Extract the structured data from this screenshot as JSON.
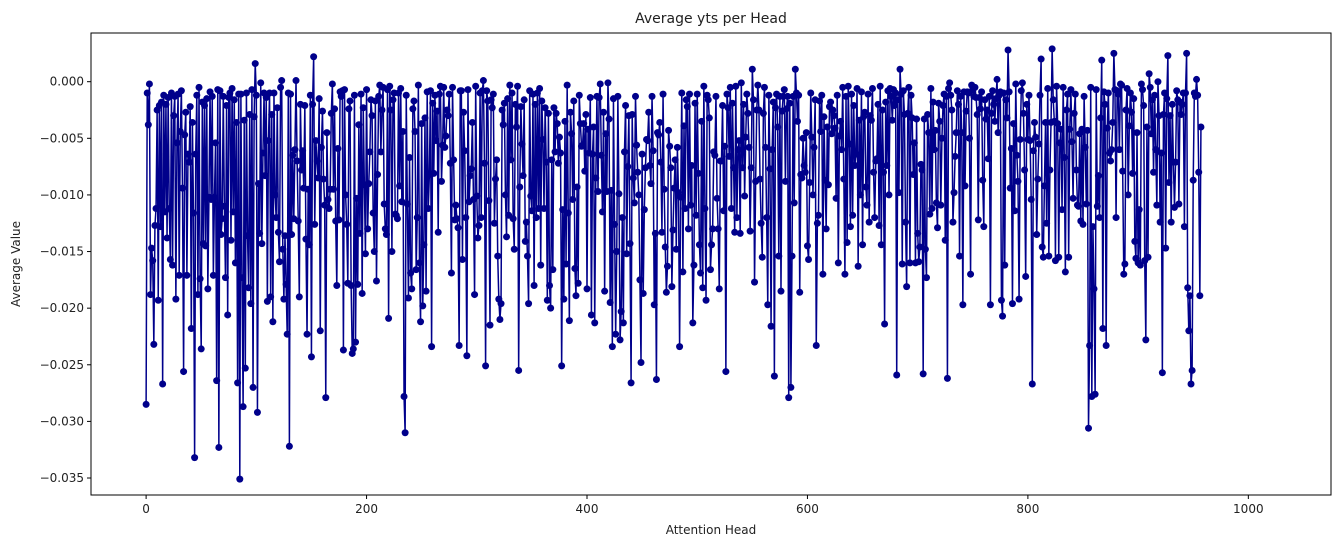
{
  "chart_data": {
    "type": "line",
    "title": "Average yts per Head",
    "xlabel": "Attention Head",
    "ylabel": "Average Value",
    "xlim": [
      -50,
      1075
    ],
    "ylim": [
      -0.0365,
      0.0043
    ],
    "xticks": [
      0,
      200,
      400,
      600,
      800,
      1000
    ],
    "xtick_labels": [
      "0",
      "200",
      "400",
      "600",
      "800",
      "1000"
    ],
    "yticks": [
      0.0,
      -0.005,
      -0.01,
      -0.015,
      -0.02,
      -0.025,
      -0.03,
      -0.035
    ],
    "ytick_labels": [
      "0.000",
      "−0.005",
      "−0.010",
      "−0.015",
      "−0.020",
      "−0.025",
      "−0.030",
      "−0.035"
    ],
    "grid": false,
    "legend": "none",
    "marker": "circle",
    "color": "#00008b",
    "series": [
      {
        "x_start": 0,
        "x_step": 1,
        "values": [
          -0.0285,
          -0.001,
          -0.0038,
          -0.0002,
          -0.0188,
          -0.0147,
          -0.0158,
          -0.0232,
          -0.0127,
          -0.0112,
          -0.0025,
          -0.0193,
          -0.0021,
          -0.0128,
          -0.0018,
          -0.0267,
          -0.0012,
          -0.0115,
          -0.002,
          -0.0138,
          -0.0014,
          -0.0112,
          -0.0157,
          -0.001,
          -0.0162,
          -0.003,
          -0.0013,
          -0.0192,
          -0.0054,
          -0.0011,
          -0.0171,
          -0.0044,
          -0.0008,
          -0.0094,
          -0.0256,
          -0.0047,
          -0.0027,
          -0.0171,
          -0.0064,
          -0.0071,
          -0.0022,
          -0.0218,
          -0.0036,
          -0.0116,
          -0.0332,
          -0.0064,
          -0.0012,
          -0.0188,
          -0.0005,
          -0.0174,
          -0.0236,
          -0.0018,
          -0.0143,
          -0.0021,
          -0.0145,
          -0.0015,
          -0.0183,
          -0.0102,
          -0.0009,
          -0.0104,
          -0.0013,
          -0.0171,
          -0.0102,
          -0.0054,
          -0.0264,
          -0.0007,
          -0.0323,
          -0.0008,
          -0.0135,
          -0.0121,
          -0.0013,
          -0.011,
          -0.0173,
          -0.0021,
          -0.0206,
          -0.0014,
          -0.001,
          -0.014,
          -0.0006,
          -0.0115,
          -0.0016,
          -0.016,
          -0.0036,
          -0.0266,
          -0.0011,
          -0.0351,
          -0.0011,
          -0.0173,
          -0.0287,
          -0.0034,
          -0.0253,
          -0.001,
          -0.0136,
          -0.0182,
          -0.0029,
          -0.0196,
          -0.0007,
          -0.027,
          -0.0031,
          0.0016,
          -0.0012,
          -0.0292,
          -0.009,
          -0.0134,
          -0.0001,
          -0.0143,
          -0.0063,
          -0.001,
          -0.0083,
          -0.0014,
          -0.0194,
          -0.0052,
          -0.001,
          -0.019,
          -0.0029,
          -0.0212,
          -0.001,
          -0.01,
          -0.012,
          -0.0023,
          -0.0133,
          -0.0159,
          -0.0005,
          0.0001,
          -0.0148,
          -0.0192,
          -0.0136,
          -0.0179,
          -0.0223,
          -0.001,
          -0.0322,
          -0.0011,
          -0.0135,
          -0.0065,
          -0.0121,
          -0.006,
          0.0001,
          -0.007,
          -0.0123,
          -0.019,
          -0.002,
          -0.0078,
          -0.0061,
          -0.0094,
          -0.0021,
          -0.0139,
          -0.0223,
          -0.0095,
          -0.0144,
          -0.0012,
          -0.0243,
          -0.002,
          0.0022,
          -0.0126,
          -0.0052,
          -0.007,
          -0.0085,
          -0.0015,
          -0.022,
          -0.0058,
          -0.0026,
          -0.0086,
          -0.0109,
          -0.0279,
          -0.0045,
          -0.0104,
          -0.0112,
          -0.0095,
          -0.0028,
          -0.0002,
          -0.0095,
          -0.0024,
          -0.0123,
          -0.018,
          -0.0059,
          -0.0122,
          -0.0009,
          -0.0013,
          -0.0008,
          -0.0237,
          -0.0007,
          -0.01,
          -0.0126,
          -0.0178,
          -0.0024,
          -0.0017,
          -0.018,
          -0.024,
          -0.0236,
          -0.0012,
          -0.023,
          -0.0103,
          -0.0179,
          -0.0038,
          -0.0134,
          -0.0011,
          -0.0187,
          -0.0023,
          -0.0091,
          -0.0152,
          -0.0007,
          -0.013,
          -0.009,
          -0.0062,
          -0.0016,
          -0.003,
          -0.0116,
          -0.015,
          -0.0017,
          -0.0176,
          -0.0082,
          -0.0013,
          -0.0003,
          -0.0062,
          -0.0025,
          -0.0005,
          -0.0108,
          -0.013,
          -0.0135,
          -0.0007,
          -0.0209,
          -0.0004,
          -0.0025,
          -0.015,
          -0.0016,
          -0.001,
          -0.0117,
          -0.0118,
          -0.0121,
          -0.001,
          -0.0092,
          -0.0006,
          -0.0106,
          -0.0044,
          -0.0278,
          -0.031,
          -0.0012,
          -0.0108,
          -0.0191,
          -0.0067,
          -0.0169,
          -0.0183,
          -0.0024,
          -0.0017,
          -0.0044,
          -0.0166,
          -0.012,
          -0.0003,
          -0.016,
          -0.0212,
          -0.0037,
          -0.0198,
          -0.0144,
          -0.0032,
          -0.0185,
          -0.0009,
          -0.0112,
          -0.0082,
          -0.0008,
          -0.0234,
          -0.0019,
          -0.0081,
          -0.0012,
          -0.0052,
          -0.0026,
          -0.0133,
          -0.0011,
          -0.0004,
          -0.0088,
          -0.0056,
          -0.0005,
          -0.0058,
          -0.0048,
          -0.0025,
          -0.003,
          -0.0011,
          -0.0072,
          -0.0169,
          -0.0005,
          -0.0069,
          -0.0122,
          -0.0109,
          -0.0121,
          -0.0129,
          -0.0233,
          -0.0008,
          -0.0008,
          -0.0157,
          -0.0027,
          -0.0061,
          -0.012,
          -0.0242,
          -0.0007,
          -0.0106,
          -0.0083,
          -0.0077,
          -0.0036,
          -0.0104,
          -0.0188,
          -0.0004,
          -0.0101,
          -0.0138,
          -0.0127,
          -0.001,
          -0.012,
          -0.0008,
          0.0001,
          -0.0072,
          -0.0251,
          -0.0008,
          -0.0017,
          -0.0105,
          -0.0215,
          -0.0016,
          -0.0023,
          -0.0011,
          -0.0125,
          -0.0086,
          -0.0069,
          -0.0154,
          -0.0192,
          -0.021,
          -0.0196,
          -0.0025,
          -0.0038,
          -0.0019,
          -0.01,
          -0.0137,
          -0.0015,
          -0.0118,
          -0.0003,
          -0.0069,
          -0.001,
          -0.0121,
          -0.0148,
          -0.002,
          -0.004,
          -0.0004,
          -0.0255,
          -0.0093,
          -0.0022,
          -0.0055,
          -0.0083,
          -0.0016,
          -0.0141,
          -0.0124,
          -0.0154,
          -0.0196,
          -0.0008,
          -0.0101,
          -0.0114,
          -0.0011,
          -0.018,
          -0.002,
          -0.012,
          -0.001,
          -0.0112,
          -0.0006,
          -0.0162,
          -0.0017,
          -0.0051,
          -0.0112,
          -0.0023,
          -0.0071,
          -0.0193,
          -0.0028,
          -0.018,
          -0.02,
          -0.0069,
          -0.0166,
          -0.0023,
          -0.0062,
          -0.0028,
          -0.0037,
          -0.0072,
          -0.0049,
          -0.0063,
          -0.0251,
          -0.0113,
          -0.0192,
          -0.0035,
          -0.0161,
          -0.0003,
          -0.0116,
          -0.0211,
          -0.0027,
          -0.0046,
          -0.0104,
          -0.0017,
          -0.0165,
          -0.0189,
          -0.0093,
          -0.0178,
          -0.0012,
          -0.0037,
          -0.0057,
          -0.0056,
          -0.0037,
          -0.0079,
          -0.0029,
          -0.0183,
          -0.0042,
          -0.0063,
          -0.0014,
          -0.0206,
          -0.0064,
          -0.004,
          -0.0213,
          -0.0085,
          -0.0013,
          -0.0097,
          -0.0014,
          -0.0002,
          -0.0065,
          -0.0115,
          -0.0027,
          -0.0185,
          -0.0046,
          -0.0097,
          -0.0001,
          -0.0033,
          -0.0195,
          -0.0096,
          -0.0234,
          -0.0015,
          -0.0126,
          -0.0223,
          -0.015,
          -0.0013,
          -0.0099,
          -0.0228,
          -0.0203,
          -0.012,
          -0.0213,
          -0.0062,
          -0.0021,
          -0.0152,
          -0.0075,
          -0.003,
          -0.0143,
          -0.0266,
          -0.0029,
          -0.0085,
          -0.0107,
          -0.0013,
          -0.0056,
          -0.008,
          -0.01,
          -0.0175,
          -0.0248,
          -0.0064,
          -0.0187,
          -0.0113,
          -0.0076,
          -0.0051,
          -0.0052,
          -0.0027,
          -0.0074,
          -0.009,
          -0.0013,
          -0.0061,
          -0.0197,
          -0.0134,
          -0.0263,
          -0.0045,
          -0.0047,
          -0.0036,
          -0.0071,
          -0.0133,
          -0.0011,
          -0.0095,
          -0.0146,
          -0.0186,
          -0.0163,
          -0.0043,
          -0.0057,
          -0.0076,
          -0.0181,
          -0.0131,
          -0.0094,
          -0.0069,
          -0.0148,
          -0.0058,
          -0.0098,
          -0.0234,
          -0.0102,
          -0.001,
          -0.0168,
          -0.0039,
          -0.0112,
          -0.0016,
          -0.0022,
          -0.013,
          -0.0011,
          -0.0109,
          -0.0074,
          -0.0213,
          -0.0162,
          -0.0019,
          -0.0118,
          -0.0011,
          -0.0081,
          -0.0144,
          -0.0169,
          -0.0035,
          -0.0182,
          -0.0004,
          -0.0112,
          -0.0193,
          -0.0012,
          -0.0016,
          -0.0032,
          -0.0166,
          -0.0144,
          -0.013,
          -0.0062,
          -0.0065,
          -0.0013,
          -0.0103,
          -0.013,
          -0.0183,
          -0.007,
          -0.007,
          -0.0021,
          -0.0114,
          -0.0057,
          -0.0256,
          -0.0011,
          -0.0023,
          -0.0066,
          -0.0005,
          -0.0112,
          -0.0019,
          -0.0076,
          -0.0133,
          -0.0004,
          -0.012,
          -0.006,
          -0.0052,
          -0.0134,
          -0.0001,
          -0.0076,
          -0.002,
          -0.0101,
          -0.0049,
          -0.0011,
          -0.0028,
          -0.0058,
          -0.0132,
          -0.0076,
          0.0011,
          -0.0016,
          -0.0177,
          -0.0088,
          -0.0025,
          -0.0003,
          -0.0025,
          -0.0086,
          -0.0125,
          -0.0155,
          -0.0028,
          -0.0005,
          -0.0058,
          -0.012,
          -0.0197,
          -0.0012,
          -0.0077,
          -0.0216,
          -0.006,
          -0.0018,
          -0.026,
          -0.0023,
          -0.0011,
          -0.004,
          -0.0154,
          -0.0013,
          -0.0185,
          -0.0026,
          -0.0013,
          -0.0007,
          -0.0088,
          -0.0024,
          -0.0013,
          -0.0279,
          -0.0019,
          -0.027,
          -0.0154,
          -0.0013,
          -0.0107,
          0.0011,
          -0.001,
          -0.0035,
          -0.0012,
          -0.0186,
          -0.0082,
          -0.0085,
          -0.005,
          -0.0074,
          -0.008,
          -0.0045,
          -0.0145,
          -0.0157,
          -0.0089,
          -0.001,
          -0.0049,
          -0.01,
          -0.0058,
          -0.0016,
          -0.0233,
          -0.0125,
          -0.0118,
          -0.0017,
          -0.0044,
          -0.0012,
          -0.017,
          -0.0031,
          -0.0087,
          -0.013,
          -0.004,
          -0.0091,
          -0.0022,
          -0.0018,
          -0.0046,
          -0.0025,
          -0.003,
          -0.0041,
          -0.0103,
          -0.0012,
          -0.016,
          -0.0048,
          -0.0035,
          -0.006,
          -0.0005,
          -0.0086,
          -0.017,
          -0.0013,
          -0.0142,
          -0.0004,
          -0.0055,
          -0.0128,
          -0.0011,
          -0.0118,
          -0.0021,
          -0.0074,
          -0.0064,
          -0.0006,
          -0.0163,
          -0.0034,
          -0.01,
          -0.0009,
          -0.0144,
          -0.0031,
          -0.0027,
          -0.0093,
          -0.0109,
          -0.0011,
          -0.0124,
          -0.003,
          -0.0034,
          -0.0006,
          -0.008,
          -0.012,
          -0.007,
          -0.0068,
          -0.002,
          -0.0127,
          -0.0004,
          -0.0144,
          -0.0025,
          -0.008,
          -0.0214,
          -0.0018,
          -0.0074,
          -0.0008,
          -0.01,
          -0.0006,
          -0.0013,
          -0.0034,
          -0.0007,
          -0.0021,
          -0.001,
          -0.0259,
          -0.0016,
          -0.0098,
          0.0011,
          -0.0011,
          -0.0161,
          -0.0008,
          -0.0029,
          -0.0124,
          -0.0181,
          -0.0028,
          -0.0005,
          -0.016,
          -0.0012,
          -0.0032,
          -0.0082,
          -0.0054,
          -0.016,
          -0.0033,
          -0.0134,
          -0.0159,
          -0.0146,
          -0.0073,
          -0.0078,
          -0.0258,
          -0.0033,
          -0.0148,
          -0.0173,
          -0.0029,
          -0.0045,
          -0.0117,
          -0.0006,
          -0.0112,
          -0.0018,
          -0.006,
          -0.0043,
          -0.0107,
          -0.0129,
          -0.0019,
          -0.0035,
          -0.0109,
          -0.005,
          -0.0021,
          -0.0011,
          -0.014,
          -0.0013,
          -0.0262,
          -0.0006,
          -0.0001,
          -0.0012,
          -0.0025,
          -0.0124,
          -0.0098,
          -0.0066,
          -0.0045,
          -0.0008,
          -0.002,
          -0.0154,
          -0.0013,
          -0.0045,
          -0.0197,
          -0.0009,
          -0.0092,
          -0.0026,
          -0.0009,
          -0.001,
          -0.005,
          -0.017,
          -0.0003,
          -0.0007,
          -0.0013,
          -0.0005,
          -0.0014,
          -0.0029,
          -0.0122,
          -0.0014,
          -0.0024,
          -0.0009,
          -0.0087,
          -0.0128,
          -0.0016,
          -0.0033,
          -0.0025,
          -0.0068,
          -0.0013,
          -0.0197,
          -0.0028,
          -0.0008,
          -0.002,
          -0.0035,
          -0.0015,
          0.0002,
          -0.0045,
          -0.0012,
          -0.0009,
          -0.0193,
          -0.0207,
          -0.001,
          -0.0162,
          -0.0016,
          -0.0032,
          0.0028,
          -0.0009,
          -0.0094,
          -0.0059,
          -0.0196,
          -0.0037,
          -0.0114,
          -0.0002,
          -0.0065,
          -0.0088,
          -0.0192,
          -0.0051,
          -0.0008,
          -0.0001,
          -0.0028,
          -0.0078,
          -0.0172,
          -0.002,
          -0.0051,
          -0.0012,
          -0.0052,
          -0.0104,
          -0.0267,
          -0.0061,
          -0.0036,
          -0.0049,
          -0.0135,
          -0.0086,
          -0.0055,
          -0.0012,
          0.002,
          -0.0146,
          -0.0155,
          -0.0092,
          -0.0036,
          -0.0125,
          -0.0006,
          -0.0154,
          -0.0078,
          -0.0036,
          0.0029,
          -0.0016,
          -0.0035,
          -0.0158,
          -0.0004,
          -0.0037,
          -0.0155,
          -0.0054,
          -0.0042,
          -0.0113,
          -0.0005,
          -0.0067,
          -0.0168,
          -0.0025,
          -0.0011,
          -0.0155,
          -0.0042,
          -0.0007,
          -0.0053,
          -0.0103,
          -0.0028,
          -0.0011,
          -0.0078,
          -0.0109,
          -0.011,
          -0.0046,
          -0.0123,
          -0.0042,
          -0.0126,
          -0.0013,
          -0.0058,
          -0.0108,
          -0.0043,
          -0.0306,
          -0.0233,
          -0.0005,
          -0.0278,
          -0.0128,
          -0.0183,
          -0.0276,
          -0.0007,
          -0.011,
          -0.0083,
          -0.012,
          -0.0032,
          0.0019,
          -0.0218,
          -0.0009,
          -0.002,
          -0.0233,
          -0.0041,
          -0.001,
          -0.0063,
          -0.007,
          -0.006,
          -0.0036,
          0.0025,
          -0.0007,
          -0.012,
          -0.0008,
          -0.0011,
          -0.006,
          -0.0002,
          -0.0003,
          -0.0079,
          -0.017,
          -0.0161,
          -0.0025,
          -0.0006,
          -0.01,
          -0.0039,
          -0.001,
          -0.0027,
          -0.0081,
          -0.0015,
          -0.0141,
          -0.0156,
          -0.0045,
          -0.016,
          -0.0113,
          -0.0162,
          -0.0002,
          -0.0007,
          -0.0021,
          -0.0158,
          -0.0228,
          -0.004,
          -0.0155,
          0.0007,
          -0.0005,
          -0.0046,
          -0.0016,
          -0.008,
          -0.0012,
          -0.006,
          -0.0109,
          0.0,
          -0.003,
          -0.0124,
          -0.0063,
          -0.0257,
          -0.0029,
          -0.001,
          -0.0147,
          -0.0015,
          0.0023,
          -0.0089,
          -0.003,
          -0.0124,
          -0.002,
          -0.0071,
          -0.0111,
          -0.0071,
          -0.0008,
          -0.0016,
          -0.0108,
          -0.0018,
          -0.0029,
          -0.002,
          -0.001,
          -0.0128,
          -0.001,
          0.0025,
          -0.0182,
          -0.022,
          -0.0189,
          -0.0267,
          -0.0255,
          -0.0087,
          -0.001,
          -0.0013,
          0.0002,
          -0.0012,
          -0.008,
          -0.0189,
          -0.004
        ]
      }
    ]
  }
}
